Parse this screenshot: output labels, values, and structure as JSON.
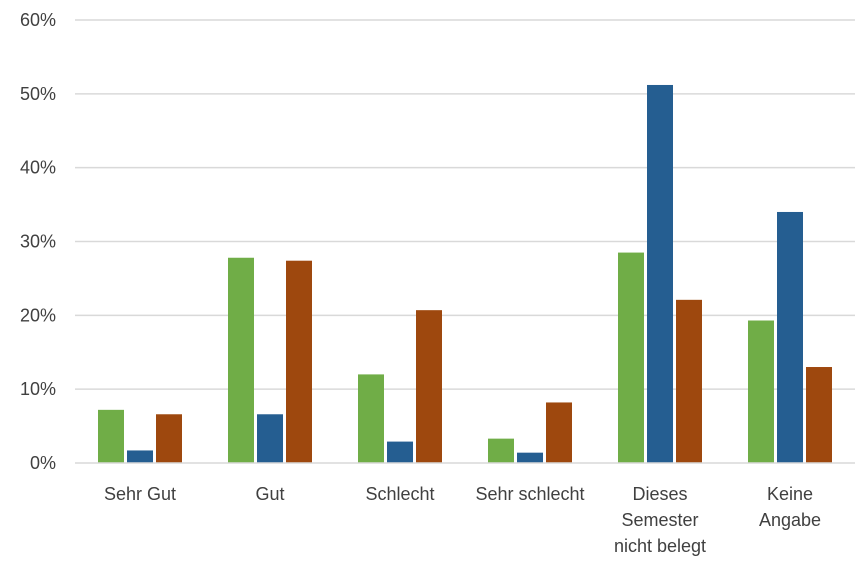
{
  "chart_data": {
    "type": "bar",
    "categories": [
      [
        "Sehr Gut"
      ],
      [
        "Gut"
      ],
      [
        "Schlecht"
      ],
      [
        "Sehr schlecht"
      ],
      [
        "Dieses",
        "Semester",
        "nicht belegt"
      ],
      [
        "Keine",
        "Angabe"
      ]
    ],
    "series": [
      {
        "values": [
          7.2,
          27.8,
          12.0,
          3.3,
          28.5,
          19.3
        ],
        "color": "#70ad47"
      },
      {
        "values": [
          1.7,
          6.6,
          2.9,
          1.4,
          51.2,
          34.0
        ],
        "color": "#255e91"
      },
      {
        "values": [
          6.6,
          27.4,
          20.7,
          8.2,
          22.1,
          13.0
        ],
        "color": "#9e480e"
      }
    ],
    "ylim": [
      0,
      60
    ],
    "yticks": [
      "0%",
      "10%",
      "20%",
      "30%",
      "40%",
      "50%",
      "60%"
    ],
    "grid": true,
    "legend": "none"
  }
}
